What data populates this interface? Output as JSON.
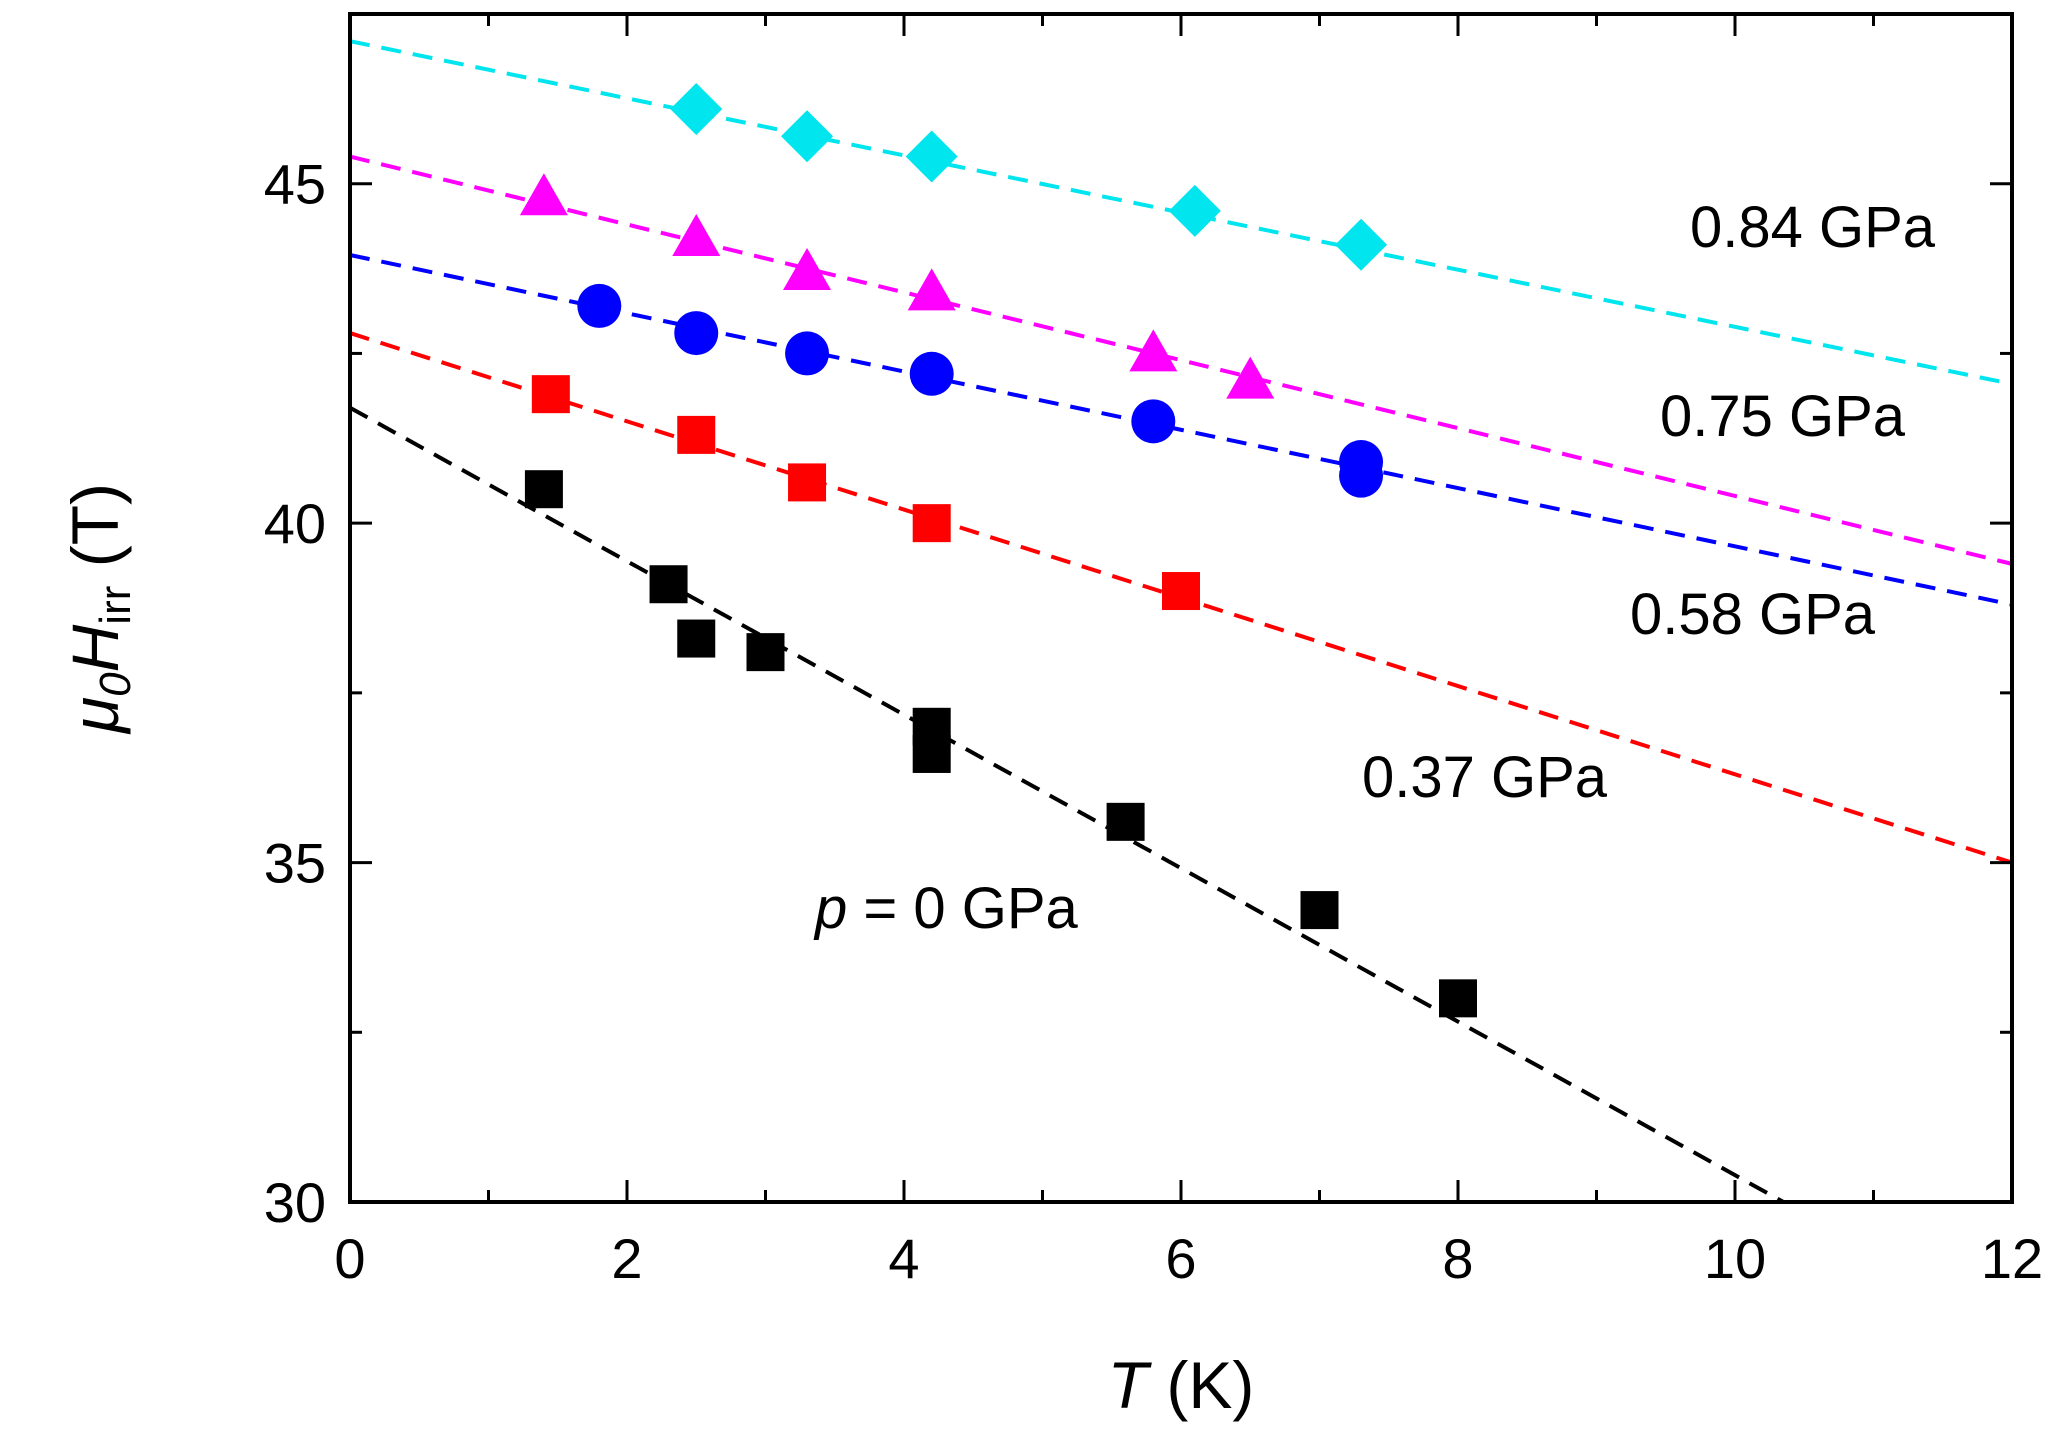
{
  "chart_data": {
    "type": "scatter",
    "xlim": [
      0,
      12
    ],
    "ylim": [
      30,
      47.5
    ],
    "x_ticks": [
      0,
      2,
      4,
      6,
      8,
      10,
      12
    ],
    "y_ticks": [
      30,
      35,
      40,
      45
    ],
    "xlabel": {
      "var": "T",
      "unit": " (K)"
    },
    "ylabel": {
      "pre": "μ",
      "sub0": "0",
      "main": "H",
      "sub": "irr",
      "unit": " (T)"
    },
    "grid": false,
    "series": [
      {
        "label_text": "0.84 GPa",
        "color": "#00e5ee",
        "marker": "diamond",
        "x": [
          2.5,
          3.3,
          4.2,
          6.1,
          7.3
        ],
        "y": [
          46.1,
          45.7,
          45.4,
          44.6,
          44.1
        ],
        "fit": {
          "x": [
            0,
            12
          ],
          "y": [
            47.1,
            42.05
          ]
        }
      },
      {
        "label_text": "0.75 GPa",
        "color": "#ff00ff",
        "marker": "triangle",
        "x": [
          1.4,
          2.5,
          3.3,
          4.2,
          5.8,
          6.5
        ],
        "y": [
          44.8,
          44.2,
          43.7,
          43.4,
          42.5,
          42.1
        ],
        "fit": {
          "x": [
            0,
            12
          ],
          "y": [
            45.4,
            39.4
          ]
        }
      },
      {
        "label_text": "0.58 GPa",
        "color": "#0000ff",
        "marker": "circle",
        "x": [
          1.8,
          2.5,
          3.3,
          4.2,
          5.8,
          7.3,
          7.3
        ],
        "y": [
          43.2,
          42.8,
          42.5,
          42.2,
          41.5,
          40.9,
          40.7
        ],
        "fit": {
          "x": [
            0,
            12
          ],
          "y": [
            43.95,
            38.8
          ]
        }
      },
      {
        "label_text": "0.37 GPa",
        "color": "#ff0000",
        "marker": "square",
        "x": [
          1.45,
          2.5,
          3.3,
          4.2,
          6.0
        ],
        "y": [
          41.9,
          41.3,
          40.6,
          40.0,
          39.0
        ],
        "fit": {
          "x": [
            0,
            12
          ],
          "y": [
            42.8,
            35.0
          ]
        }
      },
      {
        "label_prefix": "p",
        "label_text": " = 0 GPa",
        "color": "#000000",
        "marker": "square",
        "x": [
          1.4,
          2.3,
          2.5,
          3.0,
          4.2,
          4.2,
          5.6,
          7.0,
          8.0
        ],
        "y": [
          40.5,
          39.1,
          38.3,
          38.1,
          37.0,
          36.6,
          35.6,
          34.3,
          33.0
        ],
        "fit": {
          "x": [
            0,
            10.35
          ],
          "y": [
            41.7,
            30.0
          ]
        }
      }
    ]
  }
}
